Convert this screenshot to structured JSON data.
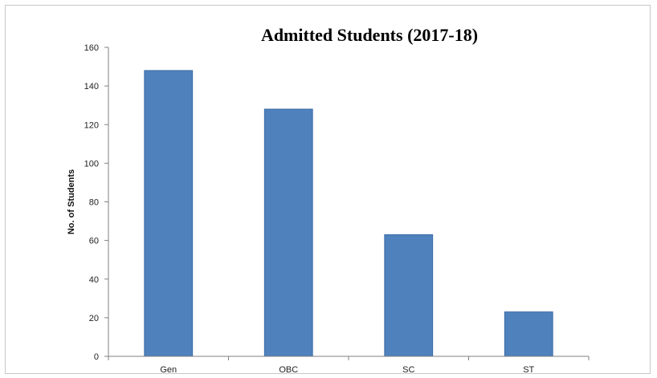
{
  "chart_data": {
    "type": "bar",
    "title": "Admitted Students (2017-18)",
    "xlabel": "",
    "ylabel": "No. of Students",
    "categories": [
      "Gen",
      "OBC",
      "SC",
      "ST"
    ],
    "values": [
      148,
      128,
      63,
      23
    ],
    "ylim": [
      0,
      160
    ],
    "yticks": [
      "0",
      "20",
      "40",
      "60",
      "80",
      "100",
      "120",
      "140",
      "160"
    ],
    "grid": false,
    "legend": "none",
    "bar_color": "#4f81bd",
    "bar_stroke_color": "#3a6aa6"
  }
}
